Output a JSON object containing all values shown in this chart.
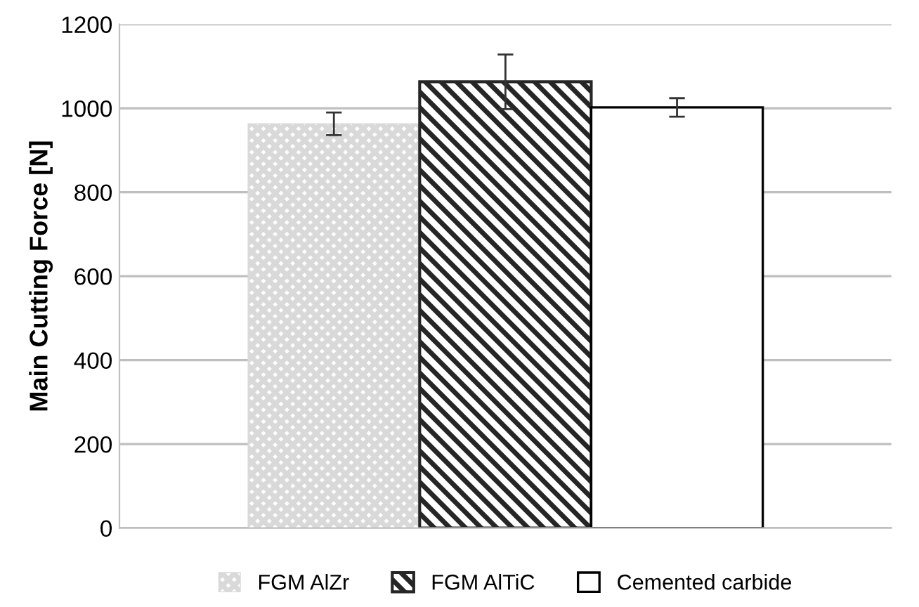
{
  "chart_data": {
    "type": "bar",
    "ylabel": "Main Cutting Force [N]",
    "categories": [
      null
    ],
    "series": [
      {
        "name": "FGM AlZr",
        "color": "#d9d9d9",
        "values": [
          963
        ],
        "errors": [
          27
        ]
      },
      {
        "name": "FGM AlTiC",
        "color": "#262626",
        "values": [
          1063
        ],
        "errors": [
          65
        ]
      },
      {
        "name": "Cemented carbide",
        "color": "#ffffff",
        "values": [
          1002
        ],
        "errors": [
          22
        ]
      }
    ],
    "ylim": [
      0,
      1200
    ],
    "yticks": [
      0,
      200,
      400,
      600,
      800,
      1000,
      1200
    ],
    "grid": "y",
    "legend": "bottom"
  }
}
